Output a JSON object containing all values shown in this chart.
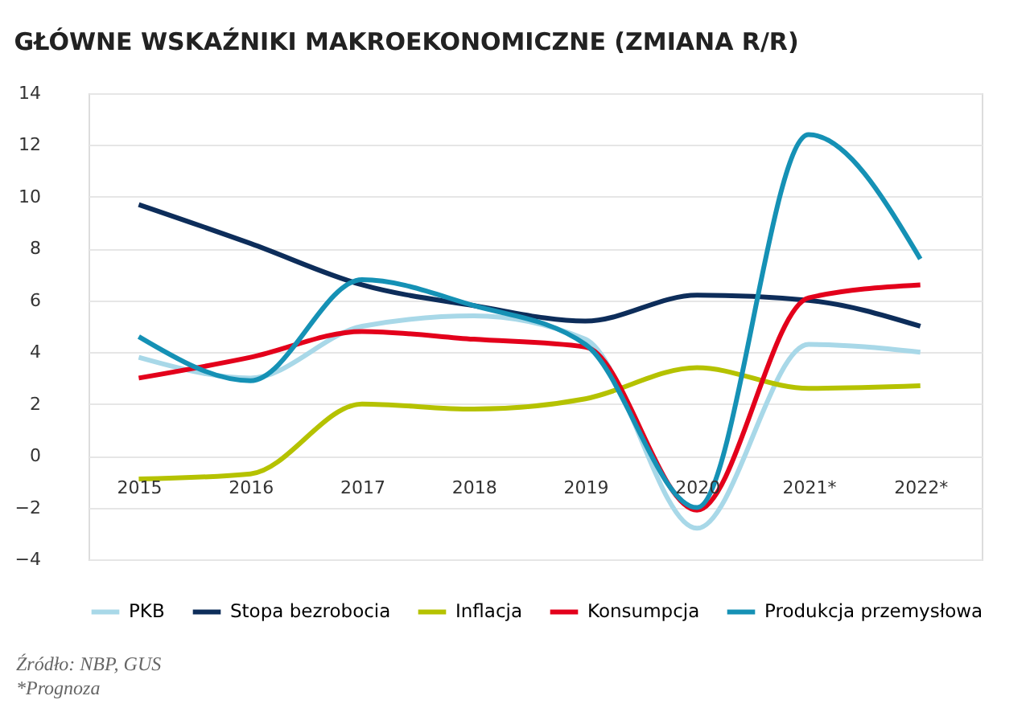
{
  "chart_data": {
    "type": "line",
    "title": "GŁÓWNE WSKAŹNIKI MAKROEKONOMICZNE (ZMIANA R/R)",
    "categories": [
      "2015",
      "2016",
      "2017",
      "2018",
      "2019",
      "2020",
      "2021*",
      "2022*"
    ],
    "series": [
      {
        "name": "PKB",
        "color": "#a8d8e8",
        "values": [
          3.8,
          3.0,
          5.0,
          5.4,
          4.5,
          -2.8,
          4.3,
          4.0
        ]
      },
      {
        "name": "Stopa bezrobocia",
        "color": "#0d2d5a",
        "values": [
          9.7,
          8.2,
          6.6,
          5.8,
          5.2,
          6.2,
          6.0,
          5.0
        ]
      },
      {
        "name": "Inflacja",
        "color": "#b5c200",
        "values": [
          -0.9,
          -0.7,
          2.0,
          1.8,
          2.2,
          3.4,
          2.6,
          2.7
        ]
      },
      {
        "name": "Konsumpcja",
        "color": "#e3001b",
        "values": [
          3.0,
          3.8,
          4.8,
          4.5,
          4.2,
          -2.1,
          6.1,
          6.6
        ]
      },
      {
        "name": "Produkcja przemysłowa",
        "color": "#1591b5",
        "values": [
          4.6,
          2.9,
          6.8,
          5.8,
          4.3,
          -2.0,
          12.4,
          7.6
        ]
      }
    ],
    "ylim": [
      -4,
      14
    ],
    "yticks": [
      -4,
      -2,
      0,
      2,
      4,
      6,
      8,
      10,
      12,
      14
    ],
    "grid": "y",
    "legend": "bottom",
    "line_style": "solid",
    "marker": "none",
    "annotations": [
      "Źródło: NBP, GUS",
      "*Prognoza"
    ]
  }
}
